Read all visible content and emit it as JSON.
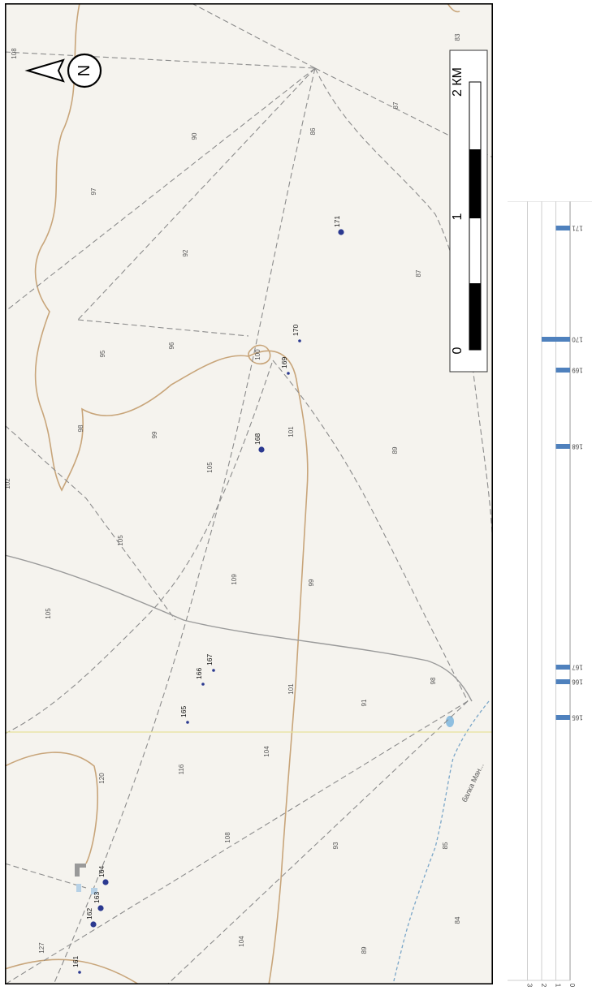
{
  "map": {
    "compass_letter": "N",
    "scale_bar": {
      "labels": [
        "0",
        "1",
        "2 КМ"
      ]
    },
    "spot_heights": [
      "108",
      "97",
      "90",
      "86",
      "83",
      "87",
      "92",
      "95",
      "96",
      "98",
      "99",
      "100",
      "102",
      "105",
      "105",
      "105",
      "109",
      "101",
      "99",
      "89",
      "87",
      "116",
      "104",
      "101",
      "91",
      "98",
      "120",
      "108",
      "93",
      "85",
      "84",
      "89",
      "127",
      "104"
    ],
    "river_name": "балка Ман...",
    "points": [
      {
        "id": "161",
        "label": "161",
        "major": false
      },
      {
        "id": "162",
        "label": "162",
        "major": true
      },
      {
        "id": "163",
        "label": "163",
        "major": true
      },
      {
        "id": "164",
        "label": "164",
        "major": true
      },
      {
        "id": "165",
        "label": "165",
        "major": false
      },
      {
        "id": "166",
        "label": "166",
        "major": false
      },
      {
        "id": "167",
        "label": "167",
        "major": false
      },
      {
        "id": "168",
        "label": "168",
        "major": true
      },
      {
        "id": "169",
        "label": "169",
        "major": false
      },
      {
        "id": "170",
        "label": "170",
        "major": false
      },
      {
        "id": "171",
        "label": "171",
        "major": true
      }
    ],
    "colors": {
      "background": "#f5f3ee",
      "contour": "#c8a57a",
      "roads": "#8c8c8c",
      "powerline": "#9a9a9a",
      "point": "#2b3990",
      "water": "#8fbfe0"
    }
  },
  "chart_data": {
    "type": "bar",
    "orientation": "rotated-180",
    "categories": [
      "165",
      "166",
      "167",
      "168",
      "169",
      "170",
      "171"
    ],
    "values": [
      1,
      1,
      1,
      1,
      1,
      2,
      1
    ],
    "x_ticks": [
      "0",
      "1",
      "2",
      "3"
    ],
    "xlim": [
      0,
      3
    ],
    "grid": true,
    "bar_color": "#4f81bd"
  }
}
